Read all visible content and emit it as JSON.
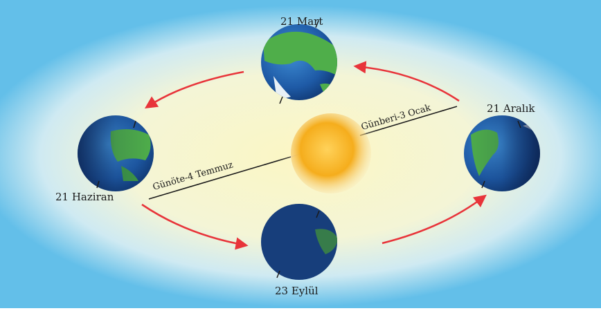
{
  "labels": {
    "march": "21 Mart",
    "june": "21 Haziran",
    "september": "23 Eylül",
    "december": "21 Aralık"
  },
  "distances": {
    "aphelion": "Günöte-4 Temmuz",
    "perihelion": "Günberi-3 Ocak"
  },
  "colors": {
    "sky": "#63bfe9",
    "orbit_glow": "#f8f6cf",
    "sun": "#f2a817",
    "ocean": "#1f5fa8",
    "land": "#4fae4a",
    "arrow": "#e8343a"
  },
  "icons": [
    "sun-icon",
    "earth-icon",
    "orbit-arrow-icon"
  ]
}
